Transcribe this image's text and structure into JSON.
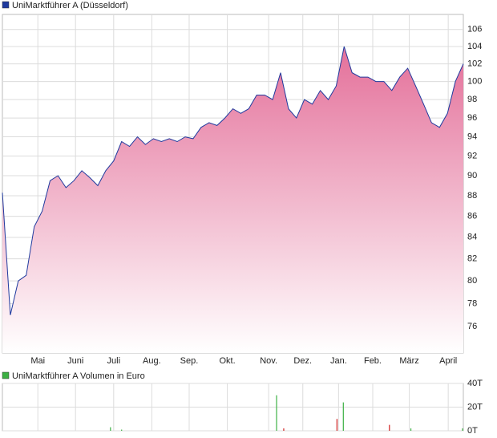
{
  "chart_data": [
    {
      "type": "area",
      "title": "UniMarktführer A (Düsseldorf)",
      "color": "#1f3a9e",
      "fill_top": "#e4709a",
      "fill_bottom": "#ffffff",
      "log_scale": true,
      "grid": true,
      "xlim": [
        0,
        58
      ],
      "xticks": [
        {
          "value": 4.46,
          "label": "Mai"
        },
        {
          "value": 9.2,
          "label": "Juni"
        },
        {
          "value": 14,
          "label": "Juli"
        },
        {
          "value": 18.8,
          "label": "Aug."
        },
        {
          "value": 23.5,
          "label": "Sep."
        },
        {
          "value": 28.3,
          "label": "Okt."
        },
        {
          "value": 33.5,
          "label": "Nov."
        },
        {
          "value": 37.8,
          "label": "Dez."
        },
        {
          "value": 42.3,
          "label": "Jan."
        },
        {
          "value": 46.6,
          "label": "Feb."
        },
        {
          "value": 51.2,
          "label": "März"
        },
        {
          "value": 56.1,
          "label": "April"
        }
      ],
      "ylim": [
        73.8,
        107.8
      ],
      "yticks": [
        76,
        78,
        80,
        82,
        84,
        86,
        88,
        90,
        92,
        94,
        96,
        98,
        100,
        102,
        104,
        106
      ],
      "values": [
        88.3,
        77,
        80,
        80.5,
        85,
        86.5,
        89.5,
        90,
        88.8,
        89.5,
        90.5,
        89.8,
        89,
        90.5,
        91.5,
        93.5,
        93,
        94,
        93.2,
        93.8,
        93.5,
        93.8,
        93.5,
        94,
        93.8,
        95,
        95.5,
        95.2,
        96,
        97,
        96.5,
        97,
        98.5,
        98.5,
        98,
        101,
        97,
        96,
        98,
        97.5,
        99,
        98,
        99.5,
        104,
        101,
        100.5,
        100.5,
        100,
        100,
        99,
        100.5,
        101.5,
        99.5,
        97.5,
        95.5,
        95,
        96.5,
        100,
        102
      ]
    },
    {
      "type": "bar",
      "title": "UniMarktführer A Volumen in Euro",
      "color": "#3cb043",
      "grid": true,
      "xlim": [
        0,
        58
      ],
      "ylim": [
        0,
        40
      ],
      "yticks": [
        {
          "value": 0,
          "label": "0T"
        },
        {
          "value": 20,
          "label": "20T"
        },
        {
          "value": 40,
          "label": "40T"
        }
      ],
      "x": [
        13.6,
        15,
        34.5,
        35.4,
        42.1,
        42.9,
        48.7,
        51.4,
        57.9
      ],
      "values": [
        3,
        1,
        30,
        2,
        10,
        24,
        5,
        2,
        2
      ],
      "colors": [
        "#3cb043",
        "#3cb043",
        "#3cb043",
        "#d02020",
        "#d02020",
        "#3cb043",
        "#d02020",
        "#3cb043",
        "#3cb043"
      ]
    }
  ]
}
